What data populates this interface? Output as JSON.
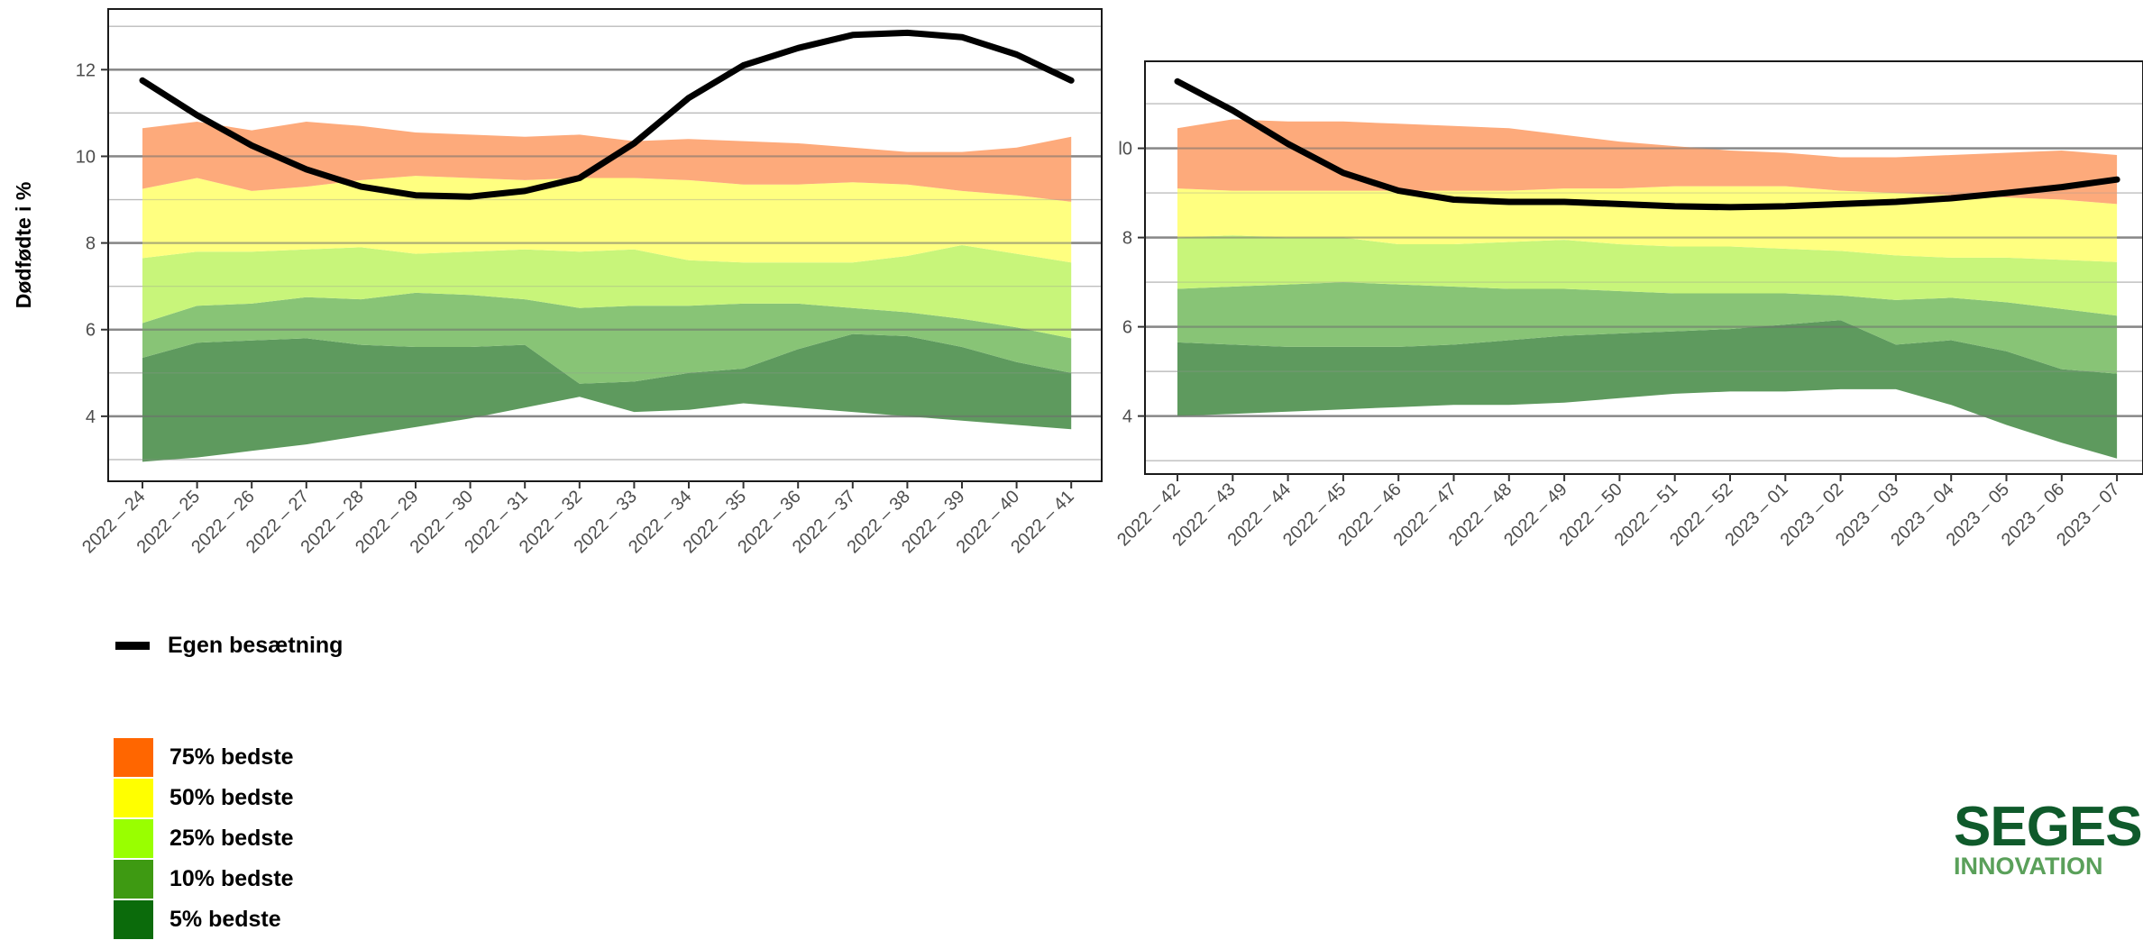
{
  "chart_data": [
    {
      "type": "area",
      "ylabel": "Dødfødte i %",
      "ylim": [
        2.5,
        13.4
      ],
      "y_ticks": [
        4,
        6,
        8,
        10,
        12
      ],
      "grid": true,
      "categories": [
        "2022 – 24",
        "2022 – 25",
        "2022 – 26",
        "2022 – 27",
        "2022 – 28",
        "2022 – 29",
        "2022 – 30",
        "2022 – 31",
        "2022 – 32",
        "2022 – 33",
        "2022 – 34",
        "2022 – 35",
        "2022 – 36",
        "2022 – 37",
        "2022 – 38",
        "2022 – 39",
        "2022 – 40",
        "2022 – 41"
      ],
      "band_boundaries": {
        "b0": [
          2.95,
          3.05,
          3.2,
          3.35,
          3.55,
          3.75,
          3.95,
          4.2,
          4.45,
          4.1,
          4.15,
          4.3,
          4.2,
          4.1,
          4.0,
          3.9,
          3.8,
          3.7
        ],
        "b1": [
          5.35,
          5.7,
          5.75,
          5.8,
          5.65,
          5.6,
          5.6,
          5.65,
          4.75,
          4.8,
          5.0,
          5.1,
          5.55,
          5.9,
          5.85,
          5.6,
          5.25,
          5.0
        ],
        "b2": [
          6.15,
          6.55,
          6.6,
          6.75,
          6.7,
          6.85,
          6.8,
          6.7,
          6.5,
          6.55,
          6.55,
          6.6,
          6.6,
          6.5,
          6.4,
          6.25,
          6.05,
          5.8
        ],
        "b3": [
          7.65,
          7.8,
          7.8,
          7.85,
          7.9,
          7.75,
          7.8,
          7.85,
          7.8,
          7.85,
          7.6,
          7.55,
          7.55,
          7.55,
          7.7,
          7.95,
          7.75,
          7.55
        ],
        "b4": [
          9.25,
          9.5,
          9.2,
          9.3,
          9.45,
          9.55,
          9.5,
          9.45,
          9.5,
          9.5,
          9.45,
          9.35,
          9.35,
          9.4,
          9.35,
          9.2,
          9.1,
          8.95
        ],
        "b5": [
          10.65,
          10.8,
          10.6,
          10.8,
          10.7,
          10.55,
          10.5,
          10.45,
          10.5,
          10.35,
          10.4,
          10.35,
          10.3,
          10.2,
          10.1,
          10.1,
          10.2,
          10.45
        ]
      },
      "series": [
        {
          "name": "Egen besætning",
          "values": [
            11.75,
            10.95,
            10.25,
            9.7,
            9.3,
            9.1,
            9.07,
            9.2,
            9.5,
            10.3,
            11.35,
            12.1,
            12.5,
            12.8,
            12.85,
            12.75,
            12.35,
            11.75
          ]
        }
      ]
    },
    {
      "type": "area",
      "ylim": [
        2.7,
        11.95
      ],
      "y_ticks": [
        4,
        6,
        8,
        10
      ],
      "y_tick_labels": [
        "4",
        "6",
        "8",
        "l0"
      ],
      "grid": true,
      "categories": [
        "2022 – 42",
        "2022 – 43",
        "2022 – 44",
        "2022 – 45",
        "2022 – 46",
        "2022 – 47",
        "2022 – 48",
        "2022 – 49",
        "2022 – 50",
        "2022 – 51",
        "2022 – 52",
        "2023 – 01",
        "2023 – 02",
        "2023 – 03",
        "2023 – 04",
        "2023 – 05",
        "2023 – 06",
        "2023 – 07"
      ],
      "band_boundaries": {
        "b0": [
          4.0,
          4.05,
          4.1,
          4.15,
          4.2,
          4.25,
          4.25,
          4.3,
          4.4,
          4.5,
          4.55,
          4.55,
          4.6,
          4.6,
          4.25,
          3.8,
          3.4,
          3.05
        ],
        "b1": [
          5.65,
          5.6,
          5.55,
          5.55,
          5.55,
          5.6,
          5.7,
          5.8,
          5.85,
          5.9,
          5.95,
          6.05,
          6.15,
          5.6,
          5.7,
          5.45,
          5.05,
          4.95
        ],
        "b2": [
          6.85,
          6.9,
          6.95,
          7.0,
          6.95,
          6.9,
          6.85,
          6.85,
          6.8,
          6.75,
          6.75,
          6.75,
          6.7,
          6.6,
          6.65,
          6.55,
          6.4,
          6.25
        ],
        "b3": [
          8.0,
          8.05,
          8.0,
          8.0,
          7.85,
          7.85,
          7.9,
          7.95,
          7.85,
          7.8,
          7.8,
          7.75,
          7.7,
          7.6,
          7.55,
          7.55,
          7.5,
          7.45
        ],
        "b4": [
          9.1,
          9.05,
          9.05,
          9.05,
          9.05,
          9.05,
          9.05,
          9.1,
          9.1,
          9.15,
          9.15,
          9.15,
          9.05,
          9.0,
          8.95,
          8.9,
          8.85,
          8.75
        ],
        "b5": [
          10.45,
          10.65,
          10.6,
          10.6,
          10.55,
          10.5,
          10.45,
          10.3,
          10.15,
          10.05,
          9.95,
          9.9,
          9.8,
          9.8,
          9.85,
          9.9,
          9.95,
          9.85
        ]
      },
      "series": [
        {
          "name": "Egen besætning",
          "values": [
            11.5,
            10.85,
            10.1,
            9.45,
            9.05,
            8.85,
            8.8,
            8.8,
            8.75,
            8.7,
            8.68,
            8.7,
            8.75,
            8.8,
            8.88,
            9.0,
            9.13,
            9.3
          ]
        }
      ]
    }
  ],
  "bands": [
    {
      "label": "5% bedste",
      "legend_color": "#0b6b0b",
      "fill": "#5e9a5e"
    },
    {
      "label": "10% bedste",
      "legend_color": "#3e9a12",
      "fill": "#88c476"
    },
    {
      "label": "25% bedste",
      "legend_color": "#99ff00",
      "fill": "#c8f57a"
    },
    {
      "label": "50% bedste",
      "legend_color": "#ffff00",
      "fill": "#ffff80"
    },
    {
      "label": "75% bedste",
      "legend_color": "#ff6600",
      "fill": "#fdaa7b"
    }
  ],
  "legend": {
    "line_label": "Egen besætning",
    "band_order": [
      "75% bedste",
      "50% bedste",
      "25% bedste",
      "10% bedste",
      "5% bedste"
    ]
  },
  "logo": {
    "line1": "SEGES",
    "line2": "INNOVATION"
  }
}
